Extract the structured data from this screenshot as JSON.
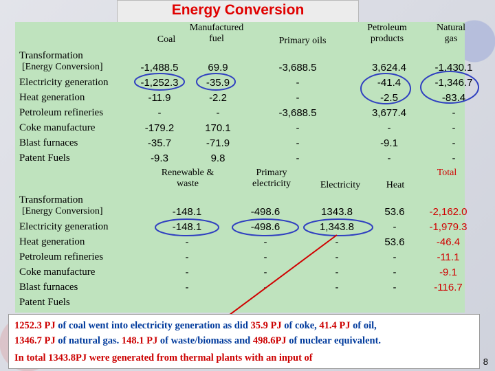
{
  "title": "Energy Conversion",
  "table1": {
    "headers": {
      "coal": "Coal",
      "manufactured_fuel": "Manufactured\nfuel",
      "primary_oils": "Primary oils",
      "petroleum_products": "Petroleum\nproducts",
      "natural_gas": "Natural\ngas"
    },
    "rows": [
      {
        "label1": "Transformation",
        "label2": "[Energy Conversion]",
        "values": [
          "-1,488.5",
          "69.9",
          "-3,688.5",
          "3,624.4",
          "-1,430.1"
        ]
      },
      {
        "label": "Electricity generation",
        "values": [
          "-1,252.3",
          "-35.9",
          "-",
          "-41.4",
          "-1,346.7"
        ]
      },
      {
        "label": "Heat generation",
        "values": [
          "-11.9",
          "-2.2",
          "-",
          "-2.5",
          "-83.4"
        ]
      },
      {
        "label": "Petroleum refineries",
        "values": [
          "-",
          "-",
          "-3,688.5",
          "3,677.4",
          "-"
        ]
      },
      {
        "label": "Coke manufacture",
        "values": [
          "-179.2",
          "170.1",
          "-",
          "-",
          "-"
        ]
      },
      {
        "label": "Blast furnaces",
        "values": [
          "-35.7",
          "-71.9",
          "-",
          "-9.1",
          "-"
        ]
      },
      {
        "label": "Patent Fuels",
        "values": [
          "-9.3",
          "9.8",
          "-",
          "-",
          "-"
        ]
      }
    ]
  },
  "table2": {
    "headers": {
      "renewable": "Renewable &\nwaste",
      "primary_electricity": "Primary\nelectricity",
      "electricity": "Electricity",
      "heat": "Heat",
      "total": "Total"
    },
    "rows": [
      {
        "label1": "Transformation",
        "label2": "[Energy Conversion]",
        "values": [
          "-148.1",
          "-498.6",
          "1343.8",
          "53.6",
          "-2,162.0"
        ]
      },
      {
        "label": "Electricity generation",
        "values": [
          "-148.1",
          "-498.6",
          "1,343.8",
          "-",
          "-1,979.3"
        ]
      },
      {
        "label": "Heat generation",
        "values": [
          "-",
          "-",
          "-",
          "53.6",
          "-46.4"
        ]
      },
      {
        "label": "Petroleum refineries",
        "values": [
          "-",
          "-",
          "-",
          "-",
          "-11.1"
        ]
      },
      {
        "label": "Coke manufacture",
        "values": [
          "-",
          "-",
          "-",
          "-",
          "-9.1"
        ]
      },
      {
        "label": "Blast furnaces",
        "values": [
          "-",
          "-",
          "-",
          "-",
          "-116.7"
        ]
      },
      {
        "label": "Patent Fuels",
        "values": [
          "",
          "",
          "",
          "",
          ""
        ]
      }
    ]
  },
  "note": {
    "line1": [
      {
        "t": "1252.3 PJ",
        "c": "r"
      },
      {
        "t": " of coal went into electricity generation as did ",
        "c": "b"
      },
      {
        "t": "35.9 PJ",
        "c": "r"
      },
      {
        "t": " of coke, ",
        "c": "b"
      },
      {
        "t": "41.4 PJ",
        "c": "r"
      },
      {
        "t": " of oil,",
        "c": "b"
      }
    ],
    "line2": [
      {
        "t": "1346.7 PJ",
        "c": "r"
      },
      {
        "t": " of natural gas. ",
        "c": "b"
      },
      {
        "t": "148.1 PJ",
        "c": "r"
      },
      {
        "t": " of waste/biomass and ",
        "c": "b"
      },
      {
        "t": "498.6PJ",
        "c": "r"
      },
      {
        "t": " of nuclear equivalent.",
        "c": "b"
      }
    ],
    "line3": [
      {
        "t": "In total 1343.8PJ were generated from thermal plants with an input of",
        "c": "r"
      }
    ]
  },
  "page_number": "8",
  "colors": {
    "accent_red": "#d00000",
    "circle_blue": "#3040c0",
    "panel_green": "#bfe3be"
  }
}
